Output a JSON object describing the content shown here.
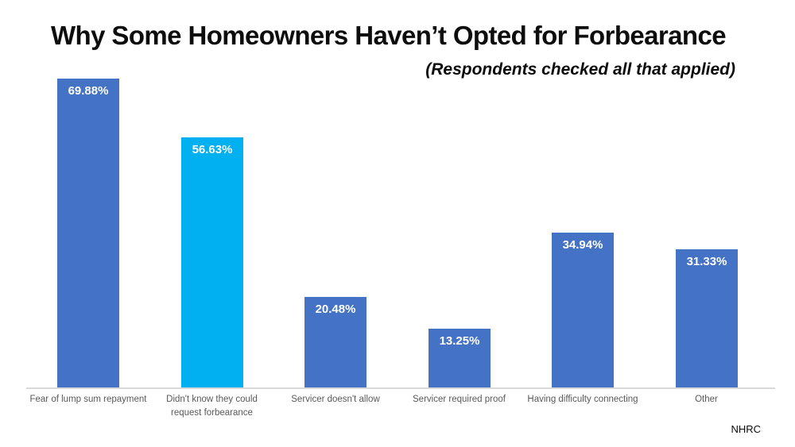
{
  "slide": {
    "title": "Why Some Homeowners Haven’t Opted for Forbearance",
    "subtitle": "(Respondents checked all that applied)",
    "footer": "NHRC"
  },
  "colors": {
    "bar": "#4472C4",
    "bar_highlight": "#00B0F0",
    "value_label": "#FFFFFF",
    "category_label": "#595959",
    "axis_line": "#D9D9D9",
    "title_text": "#0D0D0D"
  },
  "chart_data": {
    "type": "bar",
    "title": "Why Some Homeowners Haven’t Opted for Forbearance",
    "subtitle": "(Respondents checked all that applied)",
    "categories": [
      "Fear of lump sum repayment",
      "Didn't know they could request forbearance",
      "Servicer doesn't allow",
      "Servicer required proof",
      "Having difficulty connecting",
      "Other"
    ],
    "category_lines": [
      [
        "Fear of lump sum repayment"
      ],
      [
        "Didn't know they could",
        "request forbearance"
      ],
      [
        "Servicer doesn't allow"
      ],
      [
        "Servicer required proof"
      ],
      [
        "Having difficulty connecting"
      ],
      [
        "Other"
      ]
    ],
    "values": [
      69.88,
      56.63,
      20.48,
      13.25,
      34.94,
      31.33
    ],
    "value_labels": [
      "69.88%",
      "56.63%",
      "20.48%",
      "13.25%",
      "34.94%",
      "31.33%"
    ],
    "highlighted_index": 1,
    "xlabel": "",
    "ylabel": "",
    "ylim": [
      0,
      72
    ],
    "grid": false,
    "legend": false,
    "value_label_position": "inside-top",
    "source_label": "NHRC"
  }
}
